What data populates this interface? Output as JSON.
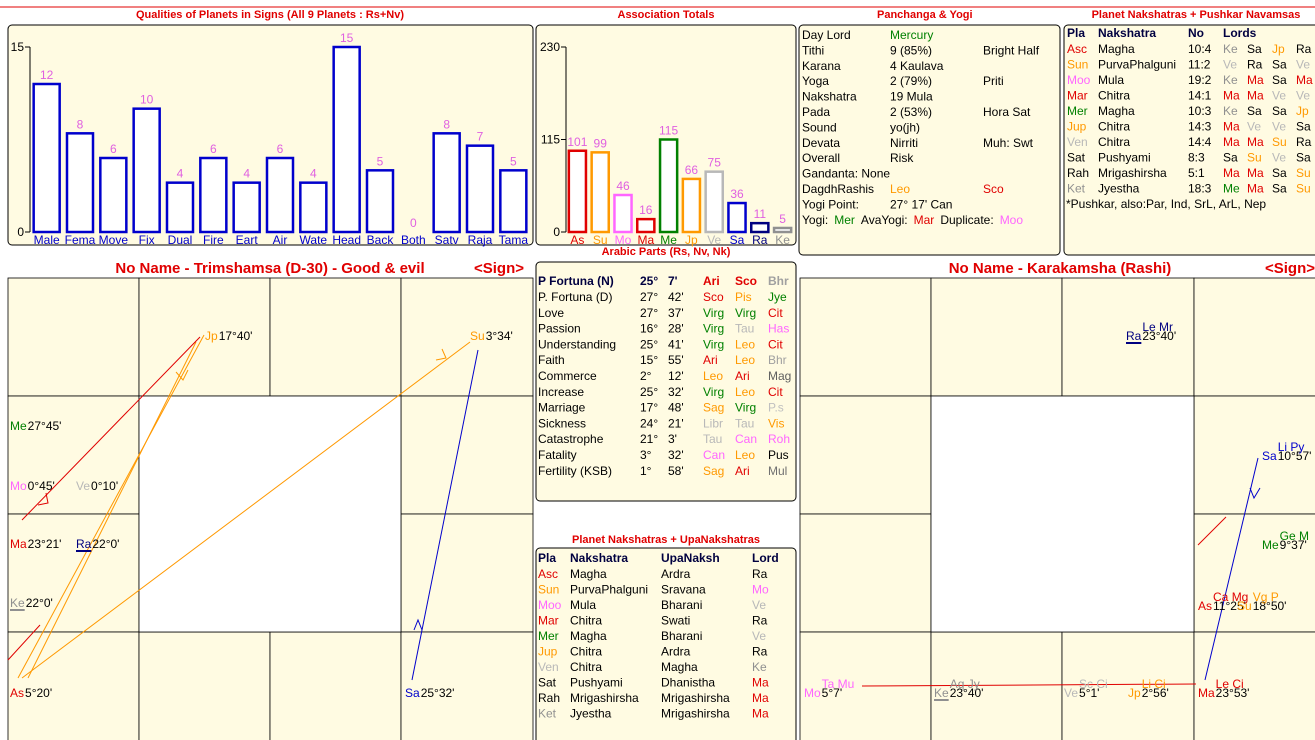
{
  "chart_data": [
    {
      "type": "bar",
      "title": "Qualities of Planets in Signs (All 9 Planets : Rs+Nv)",
      "categories": [
        "Male",
        "Fema",
        "Move",
        "Fix",
        "Dual",
        "Fire",
        "Eart",
        "Air",
        "Wate",
        "Head",
        "Back",
        "Both",
        "Satv",
        "Raja",
        "Tama"
      ],
      "values": [
        12,
        8,
        6,
        10,
        4,
        6,
        4,
        6,
        4,
        15,
        5,
        0,
        8,
        7,
        5
      ],
      "color": "#0000cc",
      "label_color": "#e060e0",
      "ylim": [
        0,
        15
      ],
      "yticks": [
        0,
        15
      ]
    },
    {
      "type": "bar",
      "title": "Association Totals",
      "categories": [
        "As",
        "Su",
        "Mo",
        "Ma",
        "Me",
        "Jp",
        "Ve",
        "Sa",
        "Ra",
        "Ke"
      ],
      "values": [
        101,
        99,
        46,
        16,
        115,
        66,
        75,
        36,
        11,
        5
      ],
      "colors": [
        "#e00000",
        "#ff9900",
        "#ff66ff",
        "#e00000",
        "#008000",
        "#ff9900",
        "#b8b8b8",
        "#0000cc",
        "#000080",
        "#909090"
      ],
      "label_color": "#e060e0",
      "ylim": [
        0,
        230
      ],
      "yticks": [
        0,
        115,
        230
      ]
    }
  ],
  "colors": {
    "Mercury": "#008000",
    "Leo": "#ff9900",
    "Sco": "#e00000",
    "Mer": "#008000",
    "Mar": "#e00000",
    "Moo": "#ff66ff",
    "Asc": "#e00000",
    "Sun": "#ff9900",
    "Jup": "#ff9900",
    "Ven": "#b8b8b8",
    "Ket": "#909090",
    "Ke": "#909090",
    "Jp": "#ff9900",
    "Ve": "#b8b8b8",
    "Ma": "#e00000",
    "Me": "#008000",
    "Su": "#ff9900",
    "Mo": "#ff66ff",
    "Ari": "#e00000",
    "Tau": "#b8b8b8",
    "Can": "#ff66ff",
    "Virg": "#008000",
    "Libr": "#b8b8b8",
    "Sag": "#ff9900",
    "Pis": "#ff9900",
    "Bhr": "#a0a0a0",
    "Jye": "#008000",
    "Cit": "#e00000",
    "Has": "#ff66ff",
    "Mag": "#606060",
    "P.s": "#c0c0c0",
    "Vis": "#ff9900",
    "Roh": "#ff66ff",
    "Mul": "#707070"
  },
  "panchanga": {
    "title": "Panchanga & Yogi",
    "rows": [
      [
        "Day Lord",
        "Mercury"
      ],
      [
        "Tithi",
        "9    (85%)",
        "Bright Half"
      ],
      [
        "Karana",
        "4    Kaulava"
      ],
      [
        "Yoga",
        "2    (79%)",
        "Priti"
      ],
      [
        "Nakshatra",
        "19  Mula"
      ],
      [
        "Pada",
        "2    (53%)",
        "Hora Sat"
      ],
      [
        "Sound",
        "yo(jh)"
      ],
      [
        "Devata",
        "Nirriti",
        "Muh: Swt"
      ],
      [
        "Overall",
        "Risk"
      ],
      [
        "Gandanta: None"
      ],
      [
        "DagdhRashis",
        "Leo",
        "Sco"
      ],
      [
        "Yogi Point:",
        "27° 17' Can"
      ],
      [
        "Yogi:",
        "Mer",
        "AvaYogi:",
        "Mar",
        "Duplicate:",
        "Moo"
      ]
    ]
  },
  "pushkar": {
    "title": "Planet Nakshatras + Pushkar Navamsas",
    "header": [
      "Pla",
      "Nakshatra",
      "No",
      "Lords"
    ],
    "rows": [
      [
        "Asc",
        "Magha",
        "10:4",
        "Ke",
        "Sa",
        "Jp",
        "Ra"
      ],
      [
        "Sun",
        "PurvaPhalguni",
        "11:2",
        "Ve",
        "Ra",
        "Sa",
        "Ve"
      ],
      [
        "Moo",
        "Mula",
        "19:2",
        "Ke",
        "Ma",
        "Sa",
        "Ma"
      ],
      [
        "Mar",
        "Chitra",
        "14:1",
        "Ma",
        "Ma",
        "Ve",
        "Ve"
      ],
      [
        "Mer",
        "Magha",
        "10:3",
        "Ke",
        "Sa",
        "Sa",
        "Jp"
      ],
      [
        "Jup",
        "Chitra",
        "14:3",
        "Ma",
        "Ve",
        "Ve",
        "Sa"
      ],
      [
        "Ven",
        "Chitra",
        "14:4",
        "Ma",
        "Ma",
        "Su",
        "Ra"
      ],
      [
        "Sat",
        "Pushyami",
        "8:3",
        "Sa",
        "Su",
        "Ve",
        "Sa"
      ],
      [
        "Rah",
        "Mrigashirsha",
        "5:1",
        "Ma",
        "Ma",
        "Sa",
        "Su"
      ],
      [
        "Ket",
        "Jyestha",
        "18:3",
        "Me",
        "Ma",
        "Sa",
        "Su"
      ]
    ],
    "note": "*Pushkar, also:Par,  Ind,   SrL,  ArL,  Nep"
  },
  "arabic": {
    "title": "Arabic Parts (Rs, Nv, Nk)",
    "header": [
      "P Fortuna (N)",
      "25°",
      "7'",
      "Ari",
      "Sco",
      "Bhr"
    ],
    "rows": [
      [
        "P. Fortuna (D)",
        "27°",
        "42'",
        "Sco",
        "Pis",
        "Jye"
      ],
      [
        "Love",
        "27°",
        "37'",
        "Virg",
        "Virg",
        "Cit"
      ],
      [
        "Passion",
        "16°",
        "28'",
        "Virg",
        "Tau",
        "Has"
      ],
      [
        "Understanding",
        "25°",
        "41'",
        "Virg",
        "Leo",
        "Cit"
      ],
      [
        "Faith",
        "15°",
        "55'",
        "Ari",
        "Leo",
        "Bhr"
      ],
      [
        "Commerce",
        "2°",
        "12'",
        "Leo",
        "Ari",
        "Mag"
      ],
      [
        "Increase",
        "25°",
        "32'",
        "Virg",
        "Leo",
        "Cit"
      ],
      [
        "Marriage",
        "17°",
        "48'",
        "Sag",
        "Virg",
        "P.s"
      ],
      [
        "Sickness",
        "24°",
        "21'",
        "Libr",
        "Tau",
        "Vis"
      ],
      [
        "Catastrophe",
        "21°",
        "3'",
        "Tau",
        "Can",
        "Roh"
      ],
      [
        "Fatality",
        "3°",
        "32'",
        "Can",
        "Leo",
        "Pus"
      ],
      [
        "Fertility (KSB)",
        "1°",
        "58'",
        "Sag",
        "Ari",
        "Mul"
      ]
    ]
  },
  "upa": {
    "title": "Planet Nakshatras + UpaNakshatras",
    "header": [
      "Pla",
      "Nakshatra",
      "UpaNaksh",
      "Lord"
    ],
    "rows": [
      [
        "Asc",
        "Magha",
        "Ardra",
        "Ra"
      ],
      [
        "Sun",
        "PurvaPhalguni",
        "Sravana",
        "Mo"
      ],
      [
        "Moo",
        "Mula",
        "Bharani",
        "Ve"
      ],
      [
        "Mar",
        "Chitra",
        "Swati",
        "Ra"
      ],
      [
        "Mer",
        "Magha",
        "Bharani",
        "Ve"
      ],
      [
        "Jup",
        "Chitra",
        "Ardra",
        "Ra"
      ],
      [
        "Ven",
        "Chitra",
        "Magha",
        "Ke"
      ],
      [
        "Sat",
        "Pushyami",
        "Dhanistha",
        "Ma"
      ],
      [
        "Rah",
        "Mrigashirsha",
        "Mrigashirsha",
        "Ma"
      ],
      [
        "Ket",
        "Jyestha",
        "Mrigashirsha",
        "Ma"
      ]
    ]
  },
  "d30": {
    "title": "No Name - Trimshamsa (D-30) - Good & evil",
    "sign": "<Sign>",
    "planets": [
      {
        "name": "Jp",
        "degree": "17°40'",
        "color": "#ff9900"
      },
      {
        "name": "Su",
        "degree": "3°34'",
        "color": "#ff9900"
      },
      {
        "name": "Me",
        "degree": "27°45'",
        "color": "#008000"
      },
      {
        "name": "Mo",
        "degree": "0°45'",
        "color": "#ff66ff"
      },
      {
        "name": "Ve",
        "degree": "0°10'",
        "color": "#b8b8b8"
      },
      {
        "name": "Ma",
        "degree": "23°21'",
        "color": "#e00000"
      },
      {
        "name": "Ra",
        "degree": "22°0'",
        "color": "#000080"
      },
      {
        "name": "Ke",
        "degree": "22°0'",
        "color": "#909090"
      },
      {
        "name": "As",
        "degree": "5°20'",
        "color": "#e00000"
      },
      {
        "name": "Sa",
        "degree": "25°32'",
        "color": "#0000cc"
      }
    ]
  },
  "karakamsha": {
    "title": "No Name - Karakamsha (Rashi)",
    "sign": "<Sign>",
    "planets": [
      {
        "name": "Ra",
        "degree": "23°40'",
        "sup": "Le Mr",
        "color": "#000080"
      },
      {
        "name": "Sa",
        "degree": "10°57'",
        "sup": "Li Py",
        "color": "#0000cc"
      },
      {
        "name": "Me",
        "degree": "9°37'",
        "sup": "Ge M",
        "color": "#008000"
      },
      {
        "name": "As",
        "degree": "11°25'",
        "sup": "Ca Mg",
        "color": "#e00000"
      },
      {
        "name": "Su",
        "degree": "18°50'",
        "sup": "Vg P",
        "color": "#ff9900"
      },
      {
        "name": "Mo",
        "degree": "5°7'",
        "sup": "Ta Mu",
        "color": "#ff66ff"
      },
      {
        "name": "Ke",
        "degree": "23°40'",
        "sup": "Aq Jy",
        "color": "#909090"
      },
      {
        "name": "Ve",
        "degree": "5°1'",
        "sup": "Sc Ci",
        "color": "#b8b8b8"
      },
      {
        "name": "Jp",
        "degree": "2°56'",
        "sup": "Li Ci",
        "color": "#ff9900"
      },
      {
        "name": "Ma",
        "degree": "23°53'",
        "sup": "Le Ci",
        "color": "#e00000"
      }
    ]
  }
}
